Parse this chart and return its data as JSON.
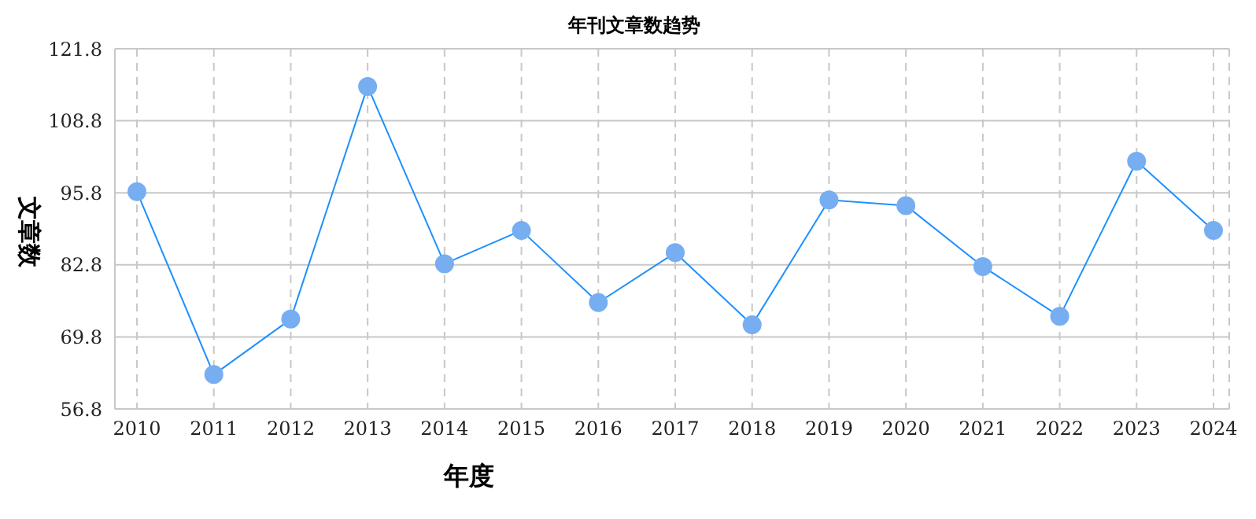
{
  "chart_data": {
    "type": "line",
    "title": "年刊文章数趋势",
    "xlabel": "年度",
    "ylabel": "文章数",
    "categories": [
      "2010",
      "2011",
      "2012",
      "2013",
      "2014",
      "2015",
      "2016",
      "2017",
      "2018",
      "2019",
      "2020",
      "2021",
      "2022",
      "2023",
      "2024"
    ],
    "series": [
      {
        "color": "#1e90ff",
        "values": [
          96,
          63,
          73,
          115,
          83,
          89,
          76,
          85,
          72,
          94.5,
          93.5,
          82.5,
          73.5,
          101.5,
          89
        ]
      }
    ],
    "ylim": [
      56.8,
      121.8
    ],
    "yticks": [
      56.8,
      69.8,
      82.8,
      95.8,
      108.8,
      121.8
    ],
    "grid": true,
    "marker": "circle",
    "line_style": "solid",
    "legend": false
  }
}
